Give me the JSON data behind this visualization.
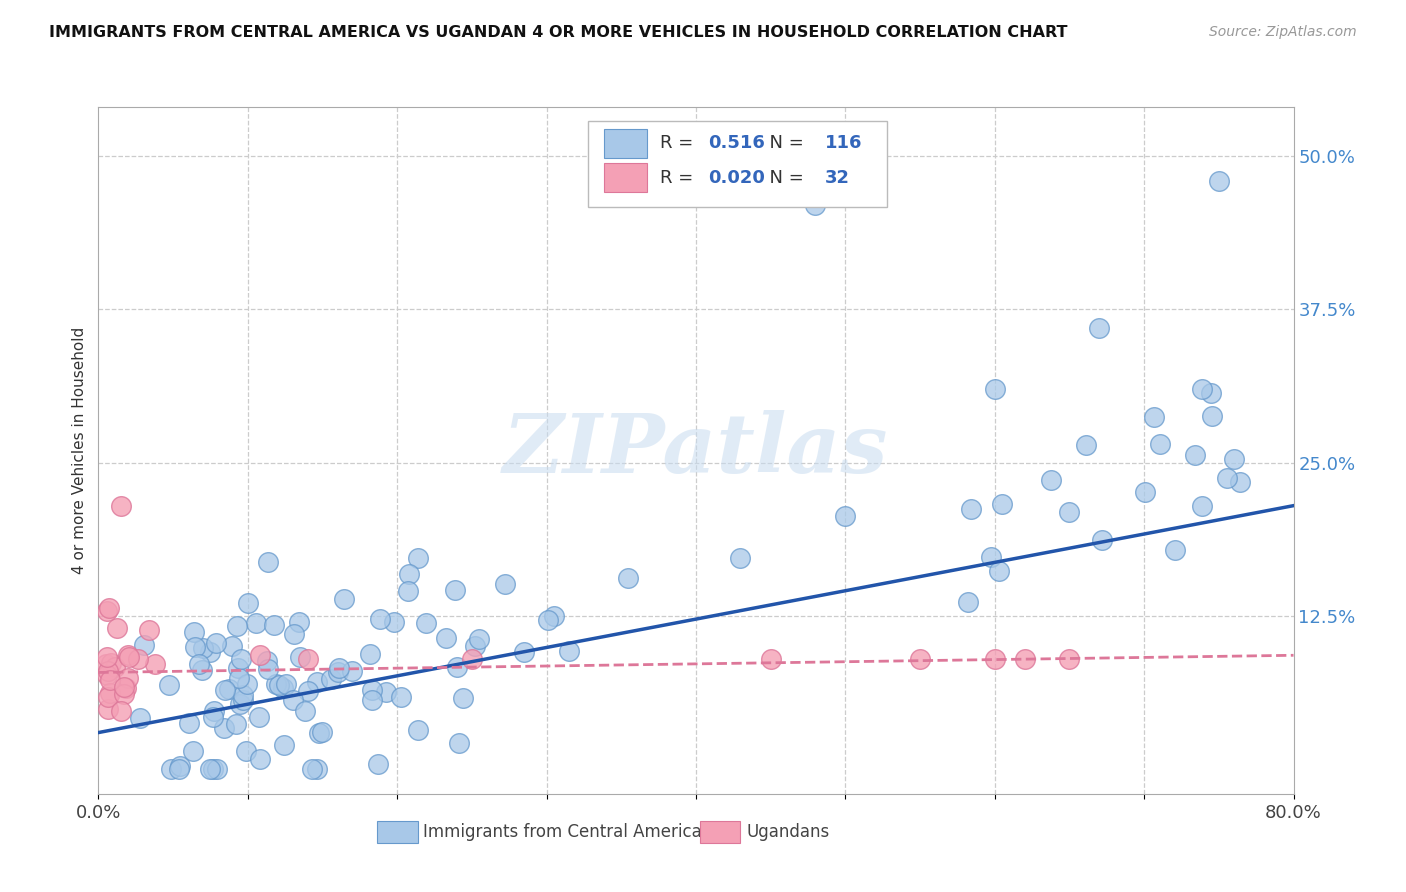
{
  "title": "IMMIGRANTS FROM CENTRAL AMERICA VS UGANDAN 4 OR MORE VEHICLES IN HOUSEHOLD CORRELATION CHART",
  "source": "Source: ZipAtlas.com",
  "ylabel": "4 or more Vehicles in Household",
  "xlim": [
    0,
    0.8
  ],
  "ylim": [
    -0.02,
    0.54
  ],
  "xtick_positions": [
    0.0,
    0.1,
    0.2,
    0.3,
    0.4,
    0.5,
    0.6,
    0.7,
    0.8
  ],
  "xticklabels": [
    "0.0%",
    "",
    "",
    "",
    "",
    "",
    "",
    "",
    "80.0%"
  ],
  "yticks_right": [
    0.125,
    0.25,
    0.375,
    0.5
  ],
  "ytick_right_labels": [
    "12.5%",
    "25.0%",
    "37.5%",
    "50.0%"
  ],
  "blue_R": "0.516",
  "blue_N": "116",
  "pink_R": "0.020",
  "pink_N": "32",
  "blue_color": "#A8C8E8",
  "pink_color": "#F4A0B5",
  "blue_edge": "#6699CC",
  "pink_edge": "#DD7799",
  "trend_blue": "#2255AA",
  "trend_pink": "#DD7799",
  "legend1_label": "Immigrants from Central America",
  "legend2_label": "Ugandans",
  "watermark_text": "ZIPatlas",
  "grid_color": "#CCCCCC",
  "blue_trend_start_y": 0.03,
  "blue_trend_end_y": 0.215,
  "pink_trend_start_y": 0.079,
  "pink_trend_end_y": 0.093
}
